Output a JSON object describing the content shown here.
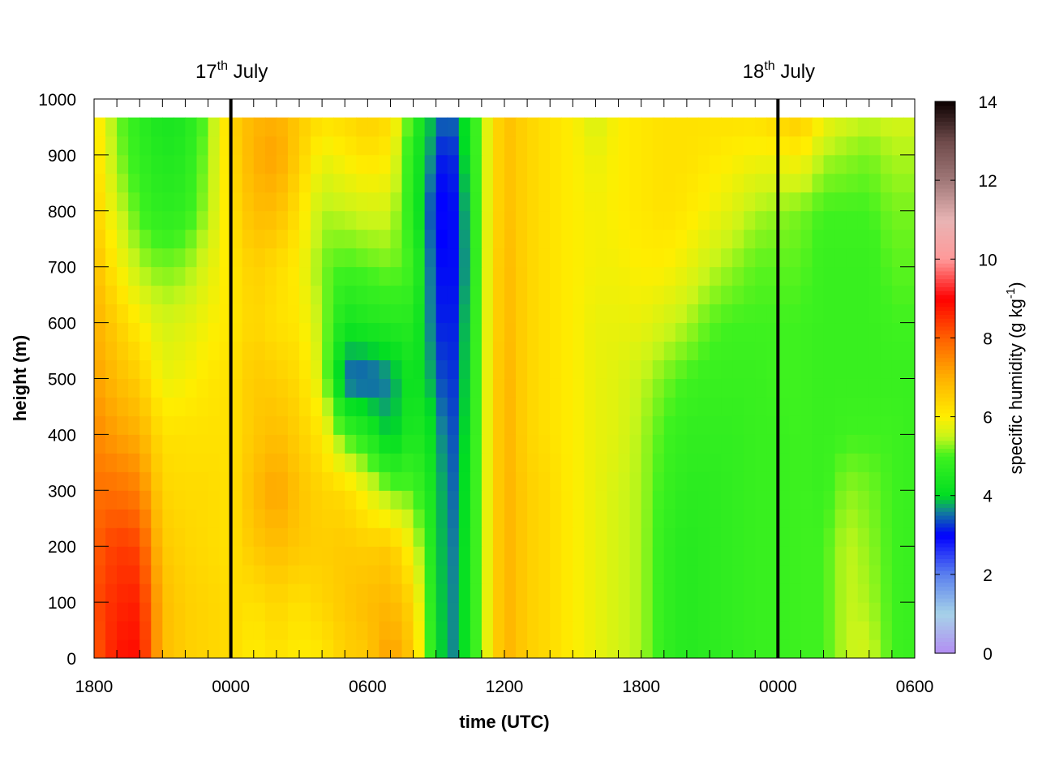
{
  "chart_data": {
    "type": "heatmap",
    "title": "",
    "xlabel": "time (UTC)",
    "ylabel": "height (m)",
    "x_hours": [
      0,
      36
    ],
    "x_ticks": [
      {
        "hour": 0,
        "label": "1800"
      },
      {
        "hour": 6,
        "label": "0000"
      },
      {
        "hour": 12,
        "label": "0600"
      },
      {
        "hour": 18,
        "label": "1200"
      },
      {
        "hour": 24,
        "label": "1800"
      },
      {
        "hour": 30,
        "label": "0000"
      },
      {
        "hour": 36,
        "label": "0600"
      }
    ],
    "ylim": [
      0,
      1000
    ],
    "y_ticks": [
      {
        "value": 0,
        "label": "0"
      },
      {
        "value": 100,
        "label": "100"
      },
      {
        "value": 200,
        "label": "200"
      },
      {
        "value": 300,
        "label": "300"
      },
      {
        "value": 400,
        "label": "400"
      },
      {
        "value": 500,
        "label": "500"
      },
      {
        "value": 600,
        "label": "600"
      },
      {
        "value": 700,
        "label": "700"
      },
      {
        "value": 800,
        "label": "800"
      },
      {
        "value": 900,
        "label": "900"
      },
      {
        "value": 1000,
        "label": "1000"
      }
    ],
    "data_top_height": 967,
    "colorbar": {
      "label_main": "specific humidity (g kg",
      "label_sup": "-1",
      "label_end": ")",
      "range": [
        0,
        14
      ],
      "ticks": [
        {
          "value": 0,
          "label": "0"
        },
        {
          "value": 2,
          "label": "2"
        },
        {
          "value": 4,
          "label": "4"
        },
        {
          "value": 6,
          "label": "6"
        },
        {
          "value": 8,
          "label": "8"
        },
        {
          "value": 10,
          "label": "10"
        },
        {
          "value": 12,
          "label": "12"
        },
        {
          "value": 14,
          "label": "14"
        }
      ],
      "stops": [
        [
          0,
          "#b38cf2"
        ],
        [
          1,
          "#a6d2e8"
        ],
        [
          2,
          "#5b80ee"
        ],
        [
          3,
          "#0000ff"
        ],
        [
          3.6,
          "#13809a"
        ],
        [
          4,
          "#00dd22"
        ],
        [
          5,
          "#3ef21f"
        ],
        [
          5.5,
          "#c8f51a"
        ],
        [
          6,
          "#ffee00"
        ],
        [
          7,
          "#ffb000"
        ],
        [
          8,
          "#ff6000"
        ],
        [
          9,
          "#ff0000"
        ],
        [
          10,
          "#ff9999"
        ],
        [
          11,
          "#e8b4b4"
        ],
        [
          12,
          "#a07878"
        ],
        [
          13,
          "#6e4a4a"
        ],
        [
          14,
          "#0b0000"
        ]
      ]
    },
    "date_markers": [
      {
        "hour": 6,
        "day": "17",
        "suffix": "th",
        "month": "July"
      },
      {
        "hour": 30,
        "day": "18",
        "suffix": "th",
        "month": "July"
      }
    ],
    "heights": [
      0,
      100,
      200,
      300,
      400,
      500,
      600,
      700,
      800,
      900,
      967
    ],
    "times": [
      0,
      1,
      2,
      3,
      4,
      5,
      6,
      7,
      8,
      9,
      10,
      11,
      12,
      13,
      14,
      15,
      15.5,
      16,
      17,
      18,
      19,
      20,
      21,
      22,
      23,
      24,
      25,
      26,
      27,
      28,
      29,
      30,
      31,
      32,
      33,
      34,
      35,
      36
    ],
    "humidity": [
      [
        8.0,
        8.2,
        8.0,
        7.8,
        7.5,
        7.2,
        7.0,
        6.8,
        6.5,
        6.3,
        6.2
      ],
      [
        8.8,
        8.6,
        8.4,
        7.8,
        7.2,
        6.8,
        6.5,
        6.0,
        5.6,
        5.3,
        5.2
      ],
      [
        8.9,
        8.7,
        8.3,
        7.6,
        7.0,
        6.5,
        6.0,
        5.4,
        5.0,
        4.8,
        4.7
      ],
      [
        6.8,
        6.8,
        6.6,
        6.4,
        6.2,
        5.8,
        5.6,
        5.2,
        4.7,
        4.5,
        4.4
      ],
      [
        6.5,
        6.5,
        6.4,
        6.3,
        6.2,
        5.9,
        5.7,
        5.3,
        4.8,
        4.6,
        4.5
      ],
      [
        6.4,
        6.4,
        6.3,
        6.3,
        6.2,
        6.1,
        5.9,
        5.7,
        5.4,
        5.3,
        5.2
      ],
      [
        6.3,
        6.3,
        6.2,
        6.2,
        6.2,
        6.2,
        6.1,
        6.1,
        6.2,
        6.3,
        6.4
      ],
      [
        6.0,
        6.2,
        6.6,
        6.8,
        6.6,
        6.6,
        6.4,
        6.5,
        6.8,
        7.0,
        6.9
      ],
      [
        6.2,
        6.4,
        6.8,
        7.2,
        6.8,
        6.5,
        6.2,
        6.3,
        6.8,
        7.2,
        7.0
      ],
      [
        6.0,
        6.2,
        6.6,
        6.7,
        6.5,
        6.3,
        6.1,
        6.0,
        6.2,
        6.5,
        6.6
      ],
      [
        6.1,
        6.4,
        6.5,
        6.4,
        6.1,
        5.6,
        5.4,
        5.2,
        5.4,
        5.8,
        6.2
      ],
      [
        6.5,
        6.6,
        6.6,
        6.3,
        5.0,
        3.4,
        4.3,
        5.0,
        5.5,
        6.0,
        6.3
      ],
      [
        6.6,
        6.8,
        6.5,
        5.8,
        4.6,
        3.3,
        4.5,
        5.1,
        5.6,
        6.2,
        6.5
      ],
      [
        7.3,
        6.9,
        6.6,
        5.2,
        3.8,
        3.6,
        4.6,
        5.2,
        5.6,
        6.0,
        6.3
      ],
      [
        6.6,
        6.4,
        5.8,
        5.1,
        4.6,
        4.4,
        4.6,
        5.0,
        4.6,
        4.6,
        4.8
      ],
      [
        4.3,
        4.2,
        4.2,
        4.2,
        4.0,
        3.6,
        3.3,
        3.1,
        3.0,
        3.4,
        3.6
      ],
      [
        3.6,
        3.6,
        3.5,
        3.4,
        3.3,
        3.1,
        3.0,
        3.0,
        2.9,
        2.9,
        3.4
      ],
      [
        3.7,
        3.7,
        3.7,
        3.6,
        3.5,
        3.4,
        3.3,
        3.1,
        3.2,
        3.5,
        3.6
      ],
      [
        5.4,
        5.4,
        5.4,
        5.4,
        5.4,
        5.4,
        5.4,
        5.4,
        5.4,
        5.4,
        5.4
      ],
      [
        7.0,
        7.0,
        7.0,
        7.0,
        7.0,
        7.0,
        6.9,
        6.9,
        6.8,
        6.8,
        6.8
      ],
      [
        6.5,
        6.5,
        6.5,
        6.5,
        6.4,
        6.4,
        6.4,
        6.4,
        6.4,
        6.4,
        6.4
      ],
      [
        6.3,
        6.3,
        6.3,
        6.3,
        6.2,
        6.2,
        6.2,
        6.2,
        6.2,
        6.2,
        6.2
      ],
      [
        6.0,
        6.0,
        6.0,
        6.0,
        6.0,
        6.0,
        6.0,
        6.0,
        6.0,
        6.0,
        6.0
      ],
      [
        5.8,
        5.8,
        5.8,
        5.8,
        5.8,
        5.8,
        5.8,
        5.9,
        5.9,
        5.8,
        5.6
      ],
      [
        5.6,
        5.6,
        5.6,
        5.6,
        5.7,
        5.7,
        5.8,
        5.9,
        6.0,
        6.0,
        6.0
      ],
      [
        5.4,
        5.4,
        5.4,
        5.4,
        5.4,
        5.5,
        5.8,
        6.0,
        6.1,
        6.1,
        6.1
      ],
      [
        4.8,
        4.8,
        4.8,
        4.9,
        5.0,
        5.2,
        5.6,
        6.0,
        6.2,
        6.2,
        6.2
      ],
      [
        4.6,
        4.6,
        4.6,
        4.7,
        4.8,
        5.0,
        5.4,
        5.8,
        6.1,
        6.2,
        6.2
      ],
      [
        4.7,
        4.7,
        4.7,
        4.7,
        4.8,
        4.9,
        5.1,
        5.5,
        5.9,
        6.1,
        6.2
      ],
      [
        4.8,
        4.8,
        4.8,
        4.8,
        4.8,
        4.9,
        5.0,
        5.3,
        5.7,
        6.0,
        6.2
      ],
      [
        4.9,
        4.9,
        4.9,
        4.9,
        4.9,
        4.9,
        5.0,
        5.1,
        5.4,
        5.9,
        6.2
      ],
      [
        4.9,
        4.9,
        4.9,
        4.9,
        4.9,
        5.0,
        5.0,
        5.1,
        5.3,
        5.9,
        6.4
      ],
      [
        5.0,
        5.0,
        5.0,
        5.0,
        5.0,
        5.0,
        5.0,
        5.1,
        5.2,
        6.0,
        6.6
      ],
      [
        5.0,
        5.0,
        5.0,
        4.9,
        4.9,
        4.9,
        4.9,
        4.9,
        5.0,
        5.4,
        5.9
      ],
      [
        5.5,
        5.5,
        5.5,
        5.3,
        5.0,
        4.9,
        4.9,
        4.9,
        5.0,
        5.3,
        5.6
      ],
      [
        5.6,
        5.4,
        5.3,
        5.2,
        5.0,
        4.9,
        4.9,
        4.9,
        5.0,
        5.2,
        5.5
      ],
      [
        5.0,
        5.0,
        5.0,
        5.0,
        5.0,
        4.9,
        5.0,
        5.1,
        5.2,
        5.4,
        5.6
      ],
      [
        4.9,
        4.9,
        4.9,
        4.9,
        4.9,
        4.9,
        5.0,
        5.1,
        5.2,
        5.4,
        5.6
      ]
    ]
  }
}
